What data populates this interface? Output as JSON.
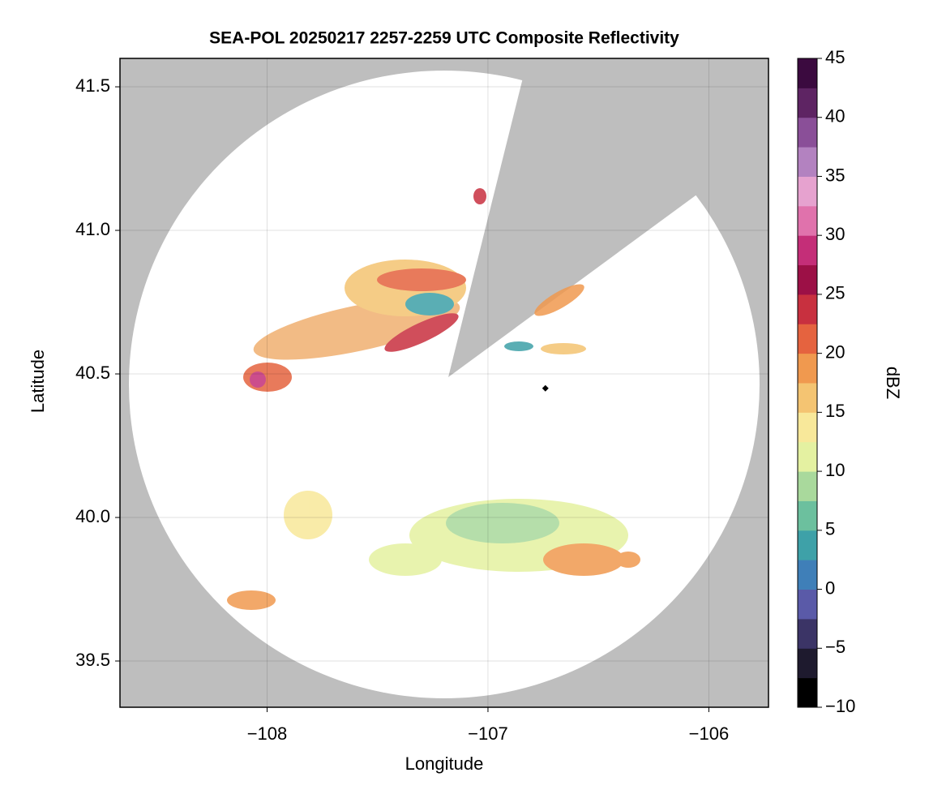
{
  "chart_data": {
    "type": "map",
    "title": "SEA-POL 20250217 2257-2259 UTC Composite Reflectivity",
    "x_label": "Longitude",
    "y_label": "Latitude",
    "xlim": [
      -108.666,
      -105.73
    ],
    "ylim": [
      39.339,
      41.599
    ],
    "xticks": [
      {
        "value": -108,
        "label": "−108"
      },
      {
        "value": -107,
        "label": "−107"
      },
      {
        "value": -106,
        "label": "−106"
      }
    ],
    "yticks": [
      39.5,
      40.0,
      40.5,
      41.0,
      41.5
    ],
    "grid": true,
    "colorbar": {
      "label": "dBZ",
      "lim": [
        -10,
        45
      ],
      "ticks": [
        {
          "value": -10,
          "label": "−10"
        },
        {
          "value": -5,
          "label": "−5"
        },
        0,
        5,
        10,
        15,
        20,
        25,
        30,
        35,
        40,
        45
      ],
      "colors": [
        "#000000",
        "#1e1a2e",
        "#3b3466",
        "#5a5aa8",
        "#3f7fb8",
        "#3ea1a8",
        "#6cc09e",
        "#a9d99c",
        "#e4f1a1",
        "#f8e89a",
        "#f4c472",
        "#f0994f",
        "#e5633f",
        "#c8303f",
        "#9c1046",
        "#c42e78",
        "#e072ac",
        "#e6a2cf",
        "#b382c0",
        "#8a4f98",
        "#5e2463",
        "#3b0a3f"
      ]
    },
    "marker_x": -106.74,
    "marker_y": 40.45
  }
}
